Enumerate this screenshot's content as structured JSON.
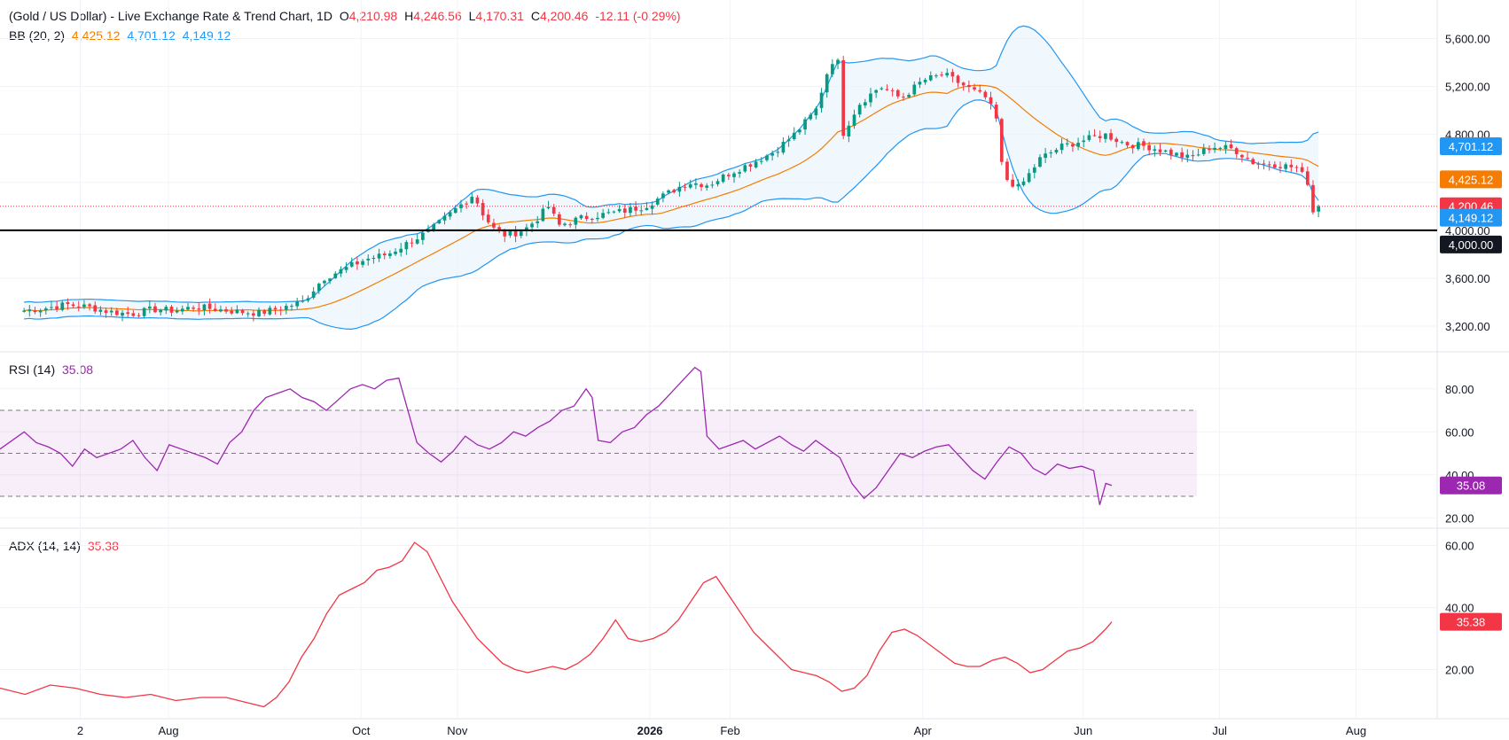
{
  "header": {
    "title": "(Gold / US Dollar) - Live Exchange Rate & Trend Chart, 1D",
    "o_label": "O",
    "o_value": "4,210.98",
    "h_label": "H",
    "h_value": "4,246.56",
    "l_label": "L",
    "l_value": "4,170.31",
    "c_label": "C",
    "c_value": "4,200.46",
    "change": "-12.11 (-0.29%)"
  },
  "indicators": {
    "bb": {
      "label": "BB (20, 2)",
      "mid": "4,425.12",
      "upper": "4,701.12",
      "lower": "4,149.12"
    },
    "rsi": {
      "label": "RSI (14)",
      "value": "35.08"
    },
    "adx": {
      "label": "ADX (14, 14)",
      "value": "35.38"
    }
  },
  "price_tags": {
    "upper": "4,701.12",
    "mid": "4,425.12",
    "close": "4,200.46",
    "lower": "4,149.12",
    "level": "4,000.00"
  },
  "colors": {
    "up": "#089981",
    "down": "#f23645",
    "bb_band": "#2196f3",
    "bb_mid": "#f57c00",
    "bb_fill": "#e3f2fd",
    "rsi": "#9c27b0",
    "adx": "#f23645",
    "level": "#000000"
  },
  "chart_data": [
    {
      "type": "candlestick",
      "title": "(Gold / US Dollar) - Live Exchange Rate & Trend Chart, 1D",
      "ylim": [
        3000,
        5700
      ],
      "y_ticks": [
        3200,
        3600,
        4000,
        4400,
        4800,
        5200,
        5600
      ],
      "y_tick_labels": [
        "3,200.00",
        "3,600.00",
        "4,000.00",
        "4,400.00",
        "4,800.00",
        "5,200.00",
        "5,600.00"
      ],
      "x_tick_labels": [
        "2",
        "Aug",
        "Oct",
        "Nov",
        "2026",
        "Feb",
        "Apr",
        "Jun",
        "Jul",
        "Aug"
      ],
      "horizontal_level": 4000,
      "last_close": 4200.46,
      "close_path": [
        [
          0,
          3330
        ],
        [
          4,
          3350
        ],
        [
          8,
          3380
        ],
        [
          12,
          3360
        ],
        [
          16,
          3320
        ],
        [
          20,
          3300
        ],
        [
          24,
          3340
        ],
        [
          28,
          3330
        ],
        [
          32,
          3360
        ],
        [
          36,
          3340
        ],
        [
          40,
          3320
        ],
        [
          44,
          3310
        ],
        [
          48,
          3350
        ],
        [
          52,
          3400
        ],
        [
          56,
          3600
        ],
        [
          60,
          3680
        ],
        [
          64,
          3760
        ],
        [
          68,
          3800
        ],
        [
          72,
          3900
        ],
        [
          76,
          4000
        ],
        [
          80,
          4150
        ],
        [
          84,
          4300
        ],
        [
          86,
          4120
        ],
        [
          88,
          4000
        ],
        [
          90,
          3960
        ],
        [
          92,
          3980
        ],
        [
          94,
          4020
        ],
        [
          96,
          4100
        ],
        [
          98,
          4200
        ],
        [
          100,
          4040
        ],
        [
          104,
          4100
        ],
        [
          108,
          4130
        ],
        [
          112,
          4160
        ],
        [
          116,
          4200
        ],
        [
          120,
          4300
        ],
        [
          124,
          4400
        ],
        [
          128,
          4380
        ],
        [
          132,
          4480
        ],
        [
          136,
          4560
        ],
        [
          140,
          4650
        ],
        [
          144,
          4800
        ],
        [
          148,
          5000
        ],
        [
          150,
          5300
        ],
        [
          152,
          5500
        ],
        [
          153,
          4800
        ],
        [
          156,
          5050
        ],
        [
          160,
          5200
        ],
        [
          164,
          5100
        ],
        [
          168,
          5250
        ],
        [
          172,
          5300
        ],
        [
          176,
          5200
        ],
        [
          180,
          5100
        ],
        [
          182,
          4900
        ],
        [
          183,
          4450
        ],
        [
          186,
          4350
        ],
        [
          190,
          4600
        ],
        [
          194,
          4700
        ],
        [
          198,
          4750
        ],
        [
          202,
          4800
        ],
        [
          206,
          4720
        ],
        [
          210,
          4700
        ],
        [
          214,
          4650
        ],
        [
          218,
          4600
        ],
        [
          222,
          4700
        ],
        [
          226,
          4680
        ],
        [
          230,
          4560
        ],
        [
          234,
          4550
        ],
        [
          238,
          4520
        ],
        [
          240,
          4400
        ],
        [
          241,
          4150
        ],
        [
          242,
          4200
        ]
      ]
    },
    {
      "type": "line",
      "title": "RSI (14)",
      "ylim": [
        16,
        96
      ],
      "y_ticks": [
        20,
        40,
        60,
        80
      ],
      "y_tick_labels": [
        "20.00",
        "40.00",
        "60.00",
        "80.00"
      ],
      "guides": [
        30,
        50,
        70
      ],
      "last_value": 35.08,
      "series": [
        {
          "name": "RSI (14)",
          "points": [
            [
              0,
              52
            ],
            [
              4,
              60
            ],
            [
              6,
              55
            ],
            [
              8,
              53
            ],
            [
              10,
              50
            ],
            [
              12,
              44
            ],
            [
              14,
              52
            ],
            [
              16,
              48
            ],
            [
              18,
              50
            ],
            [
              20,
              52
            ],
            [
              22,
              56
            ],
            [
              24,
              48
            ],
            [
              26,
              42
            ],
            [
              28,
              54
            ],
            [
              30,
              52
            ],
            [
              32,
              50
            ],
            [
              34,
              48
            ],
            [
              36,
              45
            ],
            [
              38,
              55
            ],
            [
              40,
              60
            ],
            [
              42,
              70
            ],
            [
              44,
              76
            ],
            [
              46,
              78
            ],
            [
              48,
              80
            ],
            [
              50,
              76
            ],
            [
              52,
              74
            ],
            [
              54,
              70
            ],
            [
              56,
              75
            ],
            [
              58,
              80
            ],
            [
              60,
              82
            ],
            [
              62,
              80
            ],
            [
              64,
              84
            ],
            [
              66,
              85
            ],
            [
              67,
              75
            ],
            [
              69,
              55
            ],
            [
              71,
              50
            ],
            [
              73,
              46
            ],
            [
              75,
              51
            ],
            [
              77,
              58
            ],
            [
              79,
              54
            ],
            [
              81,
              52
            ],
            [
              83,
              55
            ],
            [
              85,
              60
            ],
            [
              87,
              58
            ],
            [
              89,
              62
            ],
            [
              91,
              65
            ],
            [
              93,
              70
            ],
            [
              95,
              72
            ],
            [
              97,
              80
            ],
            [
              98,
              76
            ],
            [
              99,
              56
            ],
            [
              101,
              55
            ],
            [
              103,
              60
            ],
            [
              105,
              62
            ],
            [
              107,
              68
            ],
            [
              109,
              72
            ],
            [
              111,
              78
            ],
            [
              113,
              84
            ],
            [
              115,
              90
            ],
            [
              116,
              88
            ],
            [
              117,
              58
            ],
            [
              119,
              52
            ],
            [
              121,
              54
            ],
            [
              123,
              56
            ],
            [
              125,
              52
            ],
            [
              127,
              55
            ],
            [
              129,
              58
            ],
            [
              131,
              54
            ],
            [
              133,
              51
            ],
            [
              135,
              56
            ],
            [
              137,
              52
            ],
            [
              139,
              48
            ],
            [
              141,
              36
            ],
            [
              143,
              29
            ],
            [
              145,
              34
            ],
            [
              147,
              42
            ],
            [
              149,
              50
            ],
            [
              151,
              48
            ],
            [
              153,
              51
            ],
            [
              155,
              53
            ],
            [
              157,
              54
            ],
            [
              159,
              48
            ],
            [
              161,
              42
            ],
            [
              163,
              38
            ],
            [
              165,
              46
            ],
            [
              167,
              53
            ],
            [
              169,
              50
            ],
            [
              171,
              43
            ],
            [
              173,
              40
            ],
            [
              175,
              45
            ],
            [
              177,
              43
            ],
            [
              179,
              44
            ],
            [
              181,
              42
            ],
            [
              182,
              26
            ],
            [
              183,
              36
            ],
            [
              184,
              35.08
            ]
          ]
        }
      ]
    },
    {
      "type": "line",
      "title": "ADX (14, 14)",
      "ylim": [
        5,
        65
      ],
      "y_ticks": [
        20,
        40,
        60
      ],
      "y_tick_labels": [
        "20.00",
        "40.00",
        "60.00"
      ],
      "last_value": 35.38,
      "series": [
        {
          "name": "ADX (14, 14)",
          "points": [
            [
              0,
              14
            ],
            [
              4,
              12
            ],
            [
              8,
              15
            ],
            [
              12,
              14
            ],
            [
              16,
              12
            ],
            [
              20,
              11
            ],
            [
              24,
              12
            ],
            [
              28,
              10
            ],
            [
              32,
              11
            ],
            [
              36,
              11
            ],
            [
              40,
              9
            ],
            [
              42,
              8
            ],
            [
              44,
              11
            ],
            [
              46,
              16
            ],
            [
              48,
              24
            ],
            [
              50,
              30
            ],
            [
              52,
              38
            ],
            [
              54,
              44
            ],
            [
              56,
              46
            ],
            [
              58,
              48
            ],
            [
              60,
              52
            ],
            [
              62,
              53
            ],
            [
              64,
              55
            ],
            [
              66,
              61
            ],
            [
              68,
              58
            ],
            [
              70,
              50
            ],
            [
              72,
              42
            ],
            [
              74,
              36
            ],
            [
              76,
              30
            ],
            [
              78,
              26
            ],
            [
              80,
              22
            ],
            [
              82,
              20
            ],
            [
              84,
              19
            ],
            [
              86,
              20
            ],
            [
              88,
              21
            ],
            [
              90,
              20
            ],
            [
              92,
              22
            ],
            [
              94,
              25
            ],
            [
              96,
              30
            ],
            [
              98,
              36
            ],
            [
              100,
              30
            ],
            [
              102,
              29
            ],
            [
              104,
              30
            ],
            [
              106,
              32
            ],
            [
              108,
              36
            ],
            [
              110,
              42
            ],
            [
              112,
              48
            ],
            [
              114,
              50
            ],
            [
              116,
              44
            ],
            [
              118,
              38
            ],
            [
              120,
              32
            ],
            [
              122,
              28
            ],
            [
              124,
              24
            ],
            [
              126,
              20
            ],
            [
              128,
              19
            ],
            [
              130,
              18
            ],
            [
              132,
              16
            ],
            [
              134,
              13
            ],
            [
              136,
              14
            ],
            [
              138,
              18
            ],
            [
              140,
              26
            ],
            [
              142,
              32
            ],
            [
              144,
              33
            ],
            [
              146,
              31
            ],
            [
              148,
              28
            ],
            [
              150,
              25
            ],
            [
              152,
              22
            ],
            [
              154,
              21
            ],
            [
              156,
              21
            ],
            [
              158,
              23
            ],
            [
              160,
              24
            ],
            [
              162,
              22
            ],
            [
              164,
              19
            ],
            [
              166,
              20
            ],
            [
              168,
              23
            ],
            [
              170,
              26
            ],
            [
              172,
              27
            ],
            [
              174,
              29
            ],
            [
              176,
              33
            ],
            [
              177,
              35.38
            ]
          ]
        }
      ]
    }
  ]
}
